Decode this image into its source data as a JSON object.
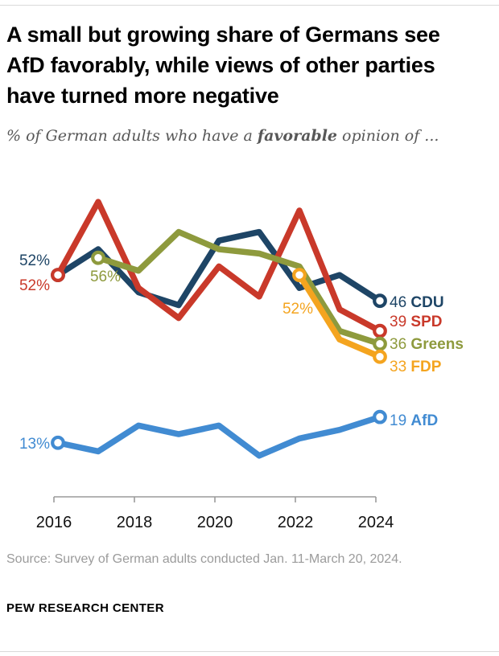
{
  "header": {
    "title": "A small but growing share of Germans see AfD favorably, while views of other parties have turned more negative",
    "subtitle_prefix": "% of German adults who have a ",
    "subtitle_bold": "favorable",
    "subtitle_suffix": " opinion of ..."
  },
  "chart_data": {
    "type": "line",
    "x": [
      2016,
      2017,
      2018,
      2019,
      2020,
      2021,
      2022,
      2023,
      2024
    ],
    "x_ticks": [
      2016,
      2018,
      2020,
      2022,
      2024
    ],
    "ylim": [
      0,
      75
    ],
    "grid": false,
    "legend_position": "line-ends",
    "series": [
      {
        "name": "CDU",
        "color": "#1e4566",
        "values": [
          52,
          58,
          48,
          45,
          60,
          62,
          49,
          52,
          46
        ],
        "start_label": "52%",
        "end_value": "46",
        "end_name": "CDU"
      },
      {
        "name": "SPD",
        "color": "#c9392a",
        "values": [
          52,
          69,
          49,
          42,
          54,
          47,
          67,
          44,
          39
        ],
        "start_label": "52%",
        "end_value": "39",
        "end_name": "SPD"
      },
      {
        "name": "Greens",
        "color": "#8e9a3d",
        "values": [
          null,
          56,
          53,
          62,
          58,
          57,
          54,
          39,
          36
        ],
        "start_label": "56%",
        "end_value": "36",
        "end_name": "Greens"
      },
      {
        "name": "FDP",
        "color": "#f4a41f",
        "values": [
          null,
          null,
          null,
          null,
          null,
          null,
          52,
          37,
          33
        ],
        "start_label": "52%",
        "end_value": "33",
        "end_name": "FDP"
      },
      {
        "name": "AfD",
        "color": "#418bd2",
        "values": [
          13,
          11,
          17,
          15,
          17,
          10,
          14,
          16,
          19
        ],
        "start_label": "13%",
        "end_value": "19",
        "end_name": "AfD"
      }
    ],
    "axis_color": "#9b9b9b",
    "year_label_color": "#111111"
  },
  "footer": {
    "source": "Source: Survey of German adults conducted Jan. 11-March 20, 2024.",
    "brand": "PEW RESEARCH CENTER"
  }
}
